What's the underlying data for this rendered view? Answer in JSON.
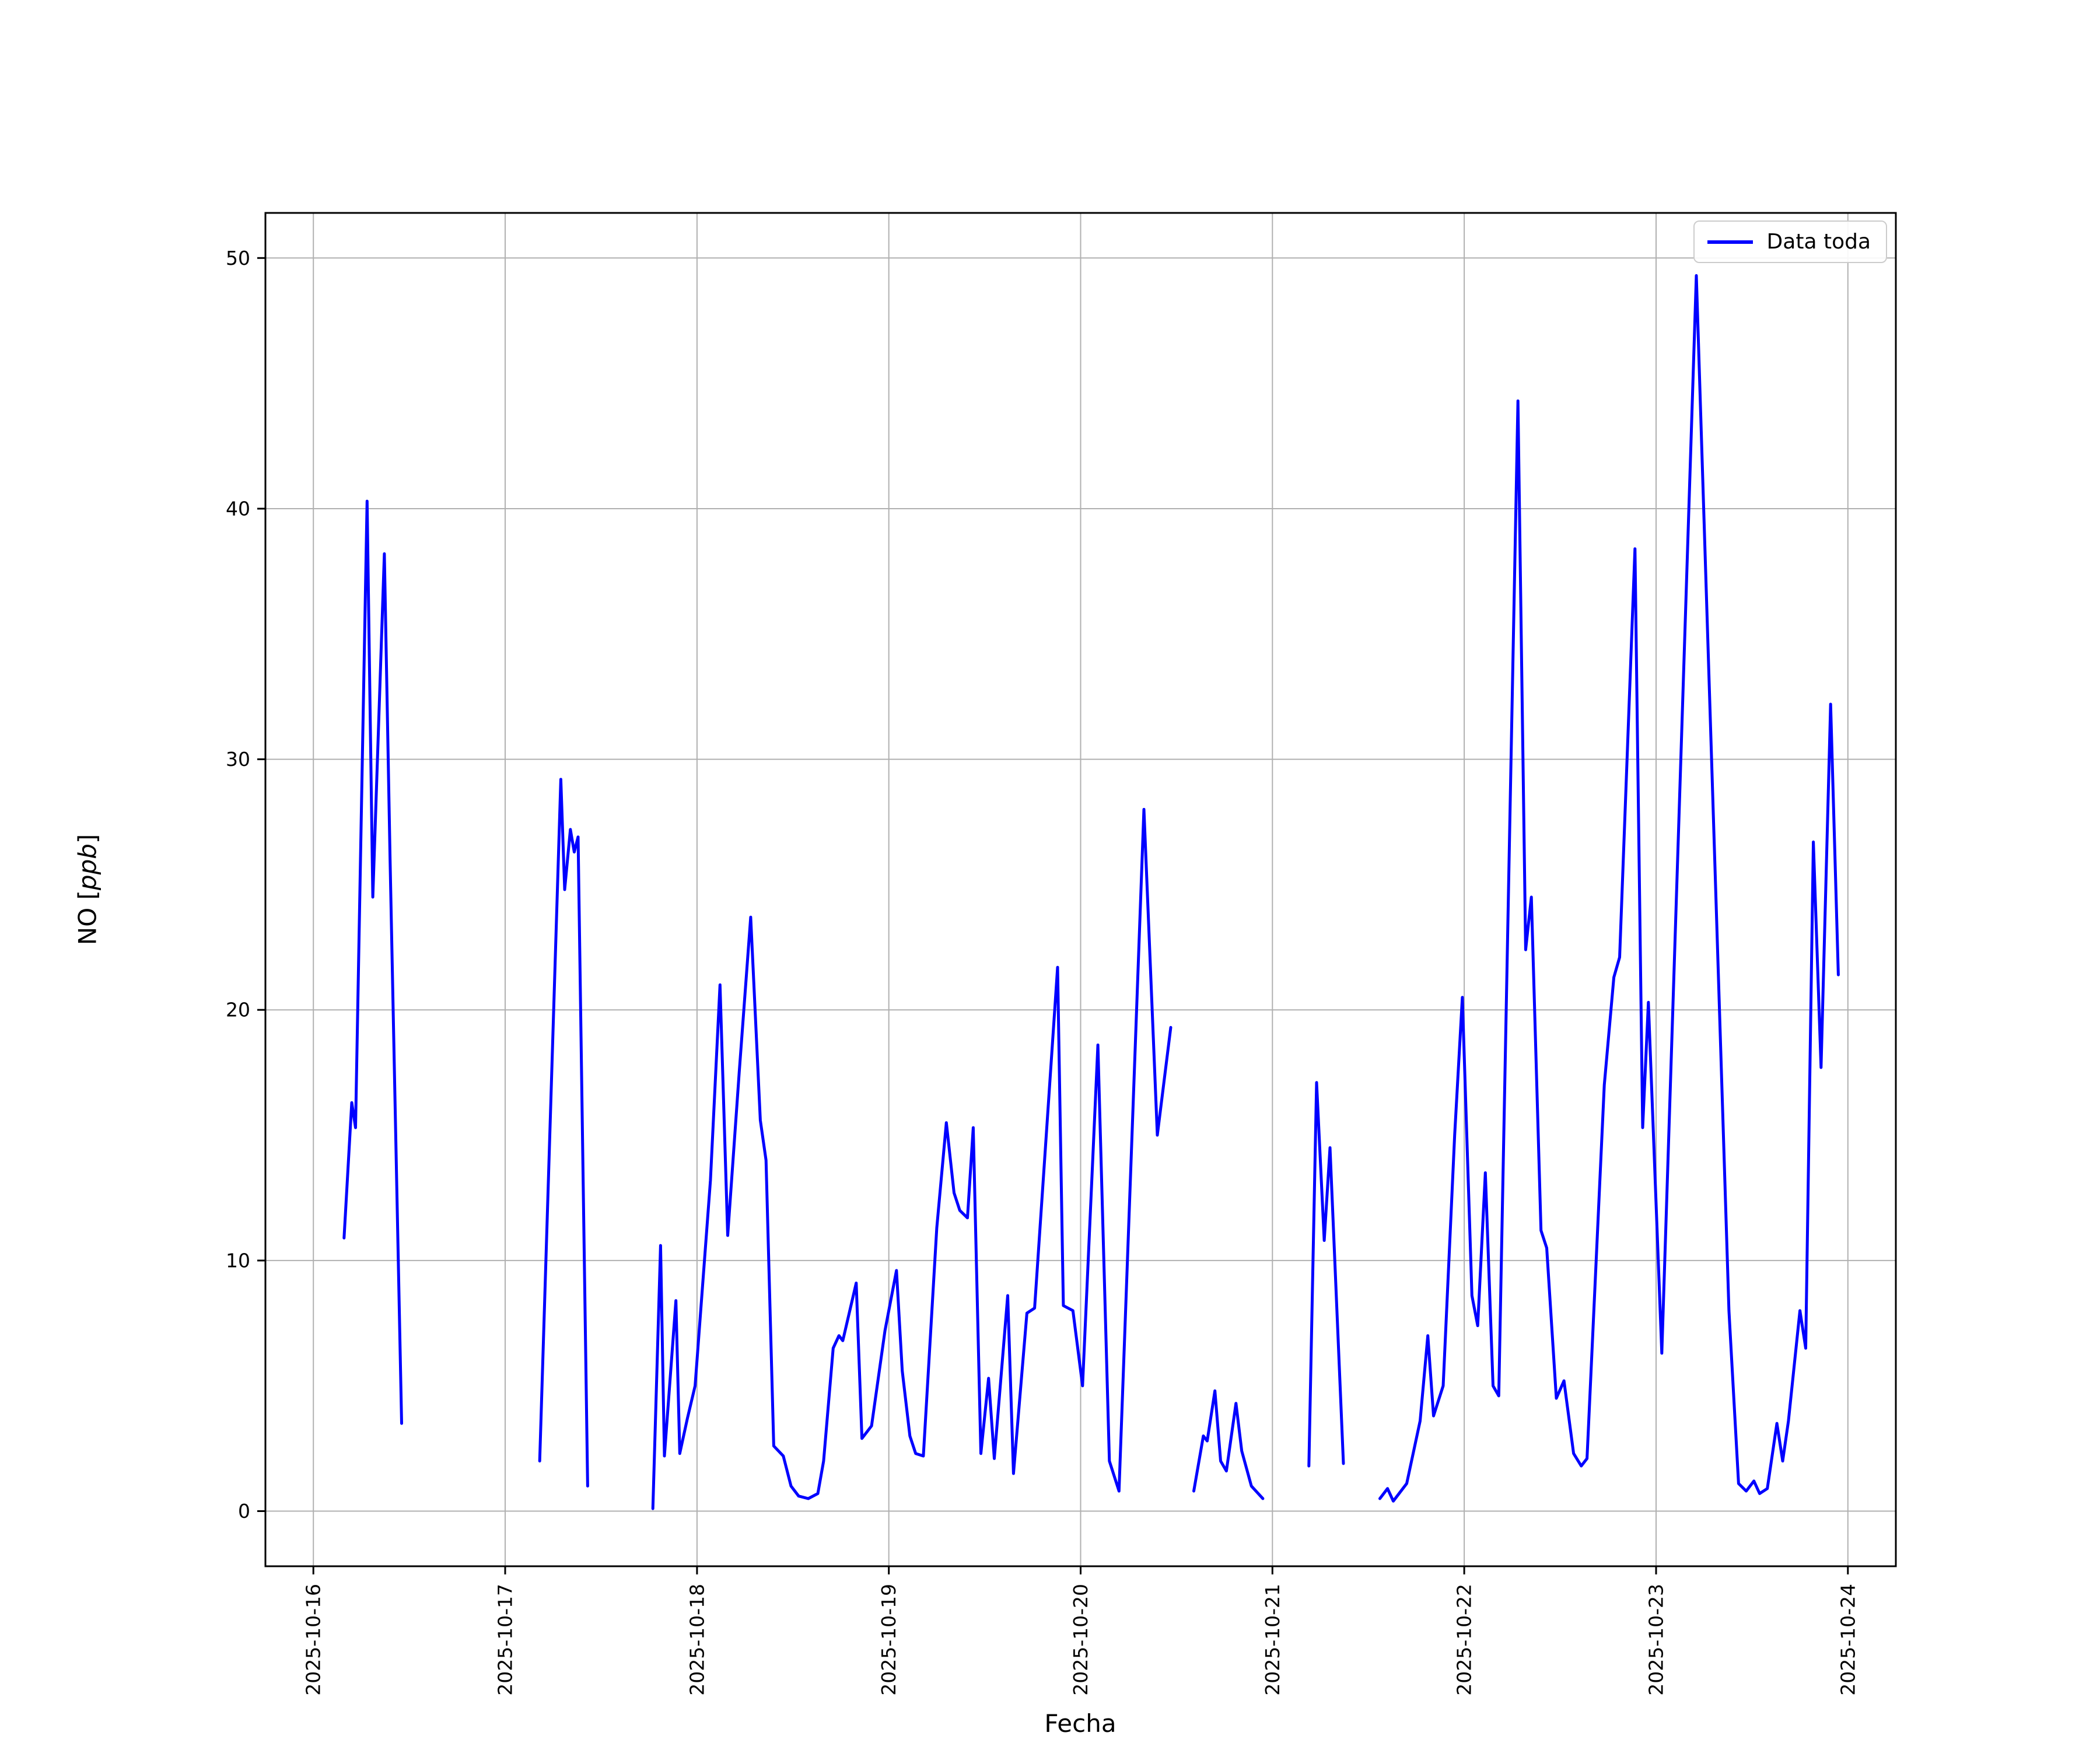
{
  "figure": {
    "background": "#ffffff"
  },
  "chart_data": {
    "type": "line",
    "title": "",
    "xlabel": "Fecha",
    "ylabel": "NO [ppb]",
    "ylabel_parts": {
      "prefix": "NO [",
      "math": "ppb",
      "suffix": "]"
    },
    "grid": true,
    "legend": {
      "position": "upper right",
      "entries": [
        {
          "label": "Data toda",
          "color": "#0000ff"
        }
      ]
    },
    "x_axis": {
      "unit": "days since 2025-10-16",
      "lim": [
        -0.25,
        8.25
      ],
      "ticks": [
        {
          "pos": 0,
          "label": "2025-10-16"
        },
        {
          "pos": 1,
          "label": "2025-10-17"
        },
        {
          "pos": 2,
          "label": "2025-10-18"
        },
        {
          "pos": 3,
          "label": "2025-10-19"
        },
        {
          "pos": 4,
          "label": "2025-10-20"
        },
        {
          "pos": 5,
          "label": "2025-10-21"
        },
        {
          "pos": 6,
          "label": "2025-10-22"
        },
        {
          "pos": 7,
          "label": "2025-10-23"
        },
        {
          "pos": 8,
          "label": "2025-10-24"
        }
      ]
    },
    "y_axis": {
      "lim": [
        -2.2,
        51.8
      ],
      "ticks": [
        0,
        10,
        20,
        30,
        40,
        50
      ]
    },
    "series": [
      {
        "name": "Data toda",
        "color": "#0000ff",
        "linewidth": 5,
        "points": [
          [
            0.16,
            10.9
          ],
          [
            0.2,
            16.3
          ],
          [
            0.22,
            15.3
          ],
          [
            0.28,
            40.3
          ],
          [
            0.31,
            24.5
          ],
          [
            0.37,
            38.2
          ],
          [
            0.4,
            26.0
          ],
          [
            0.46,
            3.5
          ],
          null,
          [
            1.18,
            2.0
          ],
          [
            1.29,
            29.2
          ],
          [
            1.31,
            24.8
          ],
          [
            1.34,
            27.2
          ],
          [
            1.36,
            26.3
          ],
          [
            1.38,
            26.9
          ],
          [
            1.43,
            1.0
          ],
          null,
          [
            1.77,
            0.1
          ],
          [
            1.81,
            10.6
          ],
          [
            1.83,
            2.2
          ],
          [
            1.89,
            8.4
          ],
          [
            1.91,
            2.3
          ],
          [
            1.95,
            3.7
          ],
          [
            1.99,
            5.0
          ],
          [
            2.07,
            13.2
          ],
          [
            2.12,
            21.0
          ],
          [
            2.16,
            11.0
          ],
          [
            2.22,
            17.5
          ],
          [
            2.28,
            23.7
          ],
          [
            2.33,
            15.6
          ],
          [
            2.36,
            14.0
          ],
          [
            2.4,
            2.6
          ],
          [
            2.45,
            2.2
          ],
          [
            2.49,
            1.0
          ],
          [
            2.53,
            0.6
          ],
          [
            2.58,
            0.5
          ],
          [
            2.63,
            0.7
          ],
          [
            2.66,
            2.0
          ],
          [
            2.71,
            6.5
          ],
          [
            2.74,
            7.0
          ],
          [
            2.76,
            6.8
          ],
          [
            2.83,
            9.1
          ],
          [
            2.86,
            2.9
          ],
          [
            2.91,
            3.4
          ],
          [
            2.98,
            7.2
          ],
          [
            3.04,
            9.6
          ],
          [
            3.07,
            5.6
          ],
          [
            3.11,
            3.0
          ],
          [
            3.14,
            2.3
          ],
          [
            3.18,
            2.2
          ],
          [
            3.25,
            11.3
          ],
          [
            3.3,
            15.5
          ],
          [
            3.34,
            12.7
          ],
          [
            3.37,
            12.0
          ],
          [
            3.41,
            11.7
          ],
          [
            3.44,
            15.3
          ],
          [
            3.48,
            2.3
          ],
          [
            3.52,
            5.3
          ],
          [
            3.55,
            2.1
          ],
          [
            3.62,
            8.6
          ],
          [
            3.65,
            1.5
          ],
          [
            3.72,
            7.9
          ],
          [
            3.76,
            8.1
          ],
          [
            3.88,
            21.7
          ],
          [
            3.91,
            8.2
          ],
          [
            3.96,
            8.0
          ],
          [
            4.01,
            5.0
          ],
          [
            4.09,
            18.6
          ],
          [
            4.15,
            2.0
          ],
          [
            4.2,
            0.8
          ],
          [
            4.33,
            28.0
          ],
          [
            4.4,
            15.0
          ],
          [
            4.47,
            19.3
          ],
          null,
          [
            4.59,
            0.8
          ],
          [
            4.64,
            3.0
          ],
          [
            4.66,
            2.8
          ],
          [
            4.7,
            4.8
          ],
          [
            4.73,
            2.0
          ],
          [
            4.76,
            1.6
          ],
          [
            4.81,
            4.3
          ],
          [
            4.84,
            2.4
          ],
          [
            4.89,
            1.0
          ],
          [
            4.95,
            0.5
          ],
          null,
          [
            5.19,
            1.8
          ],
          [
            5.23,
            17.1
          ],
          [
            5.27,
            10.8
          ],
          [
            5.3,
            14.5
          ],
          [
            5.37,
            1.9
          ],
          null,
          [
            5.56,
            0.5
          ],
          [
            5.6,
            0.9
          ],
          [
            5.63,
            0.4
          ],
          [
            5.7,
            1.1
          ],
          [
            5.77,
            3.6
          ],
          [
            5.81,
            7.0
          ],
          [
            5.84,
            3.8
          ],
          [
            5.89,
            5.0
          ],
          [
            5.95,
            15.0
          ],
          [
            5.99,
            20.5
          ],
          [
            6.04,
            8.6
          ],
          [
            6.07,
            7.4
          ],
          [
            6.11,
            13.5
          ],
          [
            6.15,
            5.0
          ],
          [
            6.18,
            4.6
          ],
          [
            6.28,
            44.3
          ],
          [
            6.32,
            22.4
          ],
          [
            6.35,
            24.5
          ],
          [
            6.4,
            11.2
          ],
          [
            6.43,
            10.5
          ],
          [
            6.48,
            4.5
          ],
          [
            6.52,
            5.2
          ],
          [
            6.57,
            2.3
          ],
          [
            6.61,
            1.8
          ],
          [
            6.64,
            2.1
          ],
          [
            6.73,
            17.0
          ],
          [
            6.78,
            21.3
          ],
          [
            6.81,
            22.1
          ],
          [
            6.89,
            38.4
          ],
          [
            6.93,
            15.3
          ],
          [
            6.96,
            20.3
          ],
          [
            7.03,
            6.3
          ],
          [
            7.21,
            49.3
          ],
          [
            7.31,
            25.0
          ],
          [
            7.38,
            8.0
          ],
          [
            7.43,
            1.1
          ],
          [
            7.47,
            0.8
          ],
          [
            7.51,
            1.2
          ],
          [
            7.54,
            0.7
          ],
          [
            7.58,
            0.9
          ],
          [
            7.63,
            3.5
          ],
          [
            7.66,
            2.0
          ],
          [
            7.69,
            3.6
          ],
          [
            7.75,
            8.0
          ],
          [
            7.78,
            6.5
          ],
          [
            7.82,
            26.7
          ],
          [
            7.86,
            17.7
          ],
          [
            7.91,
            32.2
          ],
          [
            7.95,
            21.4
          ]
        ]
      }
    ]
  }
}
